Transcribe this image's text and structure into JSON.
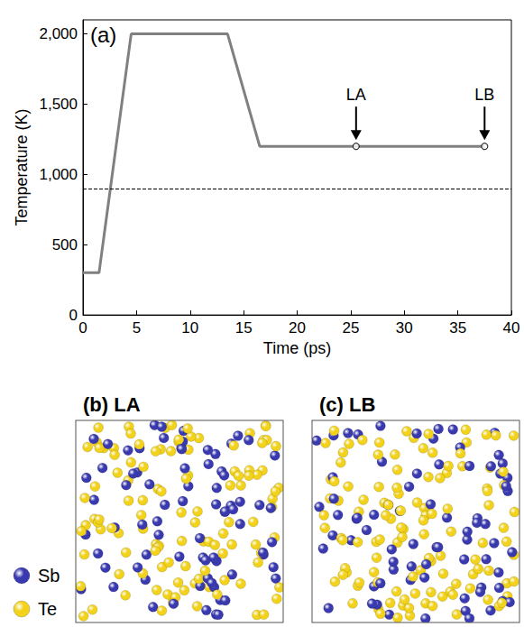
{
  "chart_data": {
    "type": "line",
    "panel_label": "(a)",
    "x_label": "Time (ps)",
    "y_label": "Temperature (K)",
    "series": [
      {
        "color": "#808080",
        "line_style": "solid",
        "x": [
          0,
          1.5,
          4.5,
          13.5,
          16.5,
          37.5
        ],
        "values": [
          300,
          300,
          2000,
          2000,
          1200,
          1200
        ]
      }
    ],
    "reference_line": {
      "value": 900,
      "line_style": "dashed",
      "color": "#000000"
    },
    "annotations": [
      {
        "text": "LA",
        "x": 25.5,
        "y": 1200
      },
      {
        "text": "LB",
        "x": 37.5,
        "y": 1200
      }
    ],
    "xlim": [
      0,
      40
    ],
    "xticks": [
      0,
      5,
      10,
      15,
      20,
      25,
      30,
      35,
      40
    ],
    "ylim": [
      0,
      2100
    ],
    "yticks": [
      0,
      500,
      1000,
      1500,
      2000
    ],
    "grid": false
  },
  "panels": [
    {
      "label": "(b) LA"
    },
    {
      "label": "(c) LB"
    }
  ],
  "species": [
    {
      "name": "Sb",
      "color": "#3a3ab0"
    },
    {
      "name": "Te",
      "color": "#f2d21a"
    }
  ]
}
